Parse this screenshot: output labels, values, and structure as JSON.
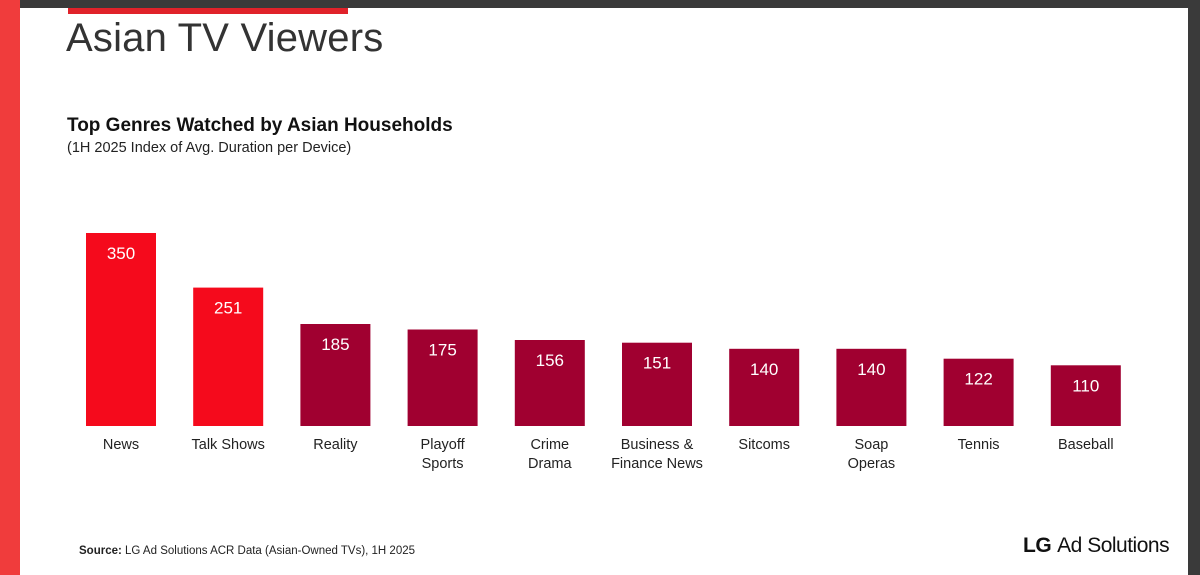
{
  "page": {
    "heading": "Asian TV Viewers",
    "source_label": "Source:",
    "source_text": "LG Ad Solutions ACR Data (Asian-Owned TVs), 1H 2025",
    "logo_brand": "LG",
    "logo_text": "Ad Solutions"
  },
  "colors": {
    "highlight": "#f50a1c",
    "bar": "#a00030",
    "accent": "#e0222a"
  },
  "chart_data": {
    "type": "bar",
    "title": "Top Genres Watched by Asian Households",
    "subtitle": "(1H 2025 Index of Avg. Duration per Device)",
    "categories": [
      [
        "News"
      ],
      [
        "Talk Shows"
      ],
      [
        "Reality"
      ],
      [
        "Playoff",
        "Sports"
      ],
      [
        "Crime",
        "Drama"
      ],
      [
        "Business &",
        "Finance News"
      ],
      [
        "Sitcoms"
      ],
      [
        "Soap",
        "Operas"
      ],
      [
        "Tennis"
      ],
      [
        "Baseball"
      ]
    ],
    "values": [
      350,
      251,
      185,
      175,
      156,
      151,
      140,
      140,
      122,
      110
    ],
    "highlighted": [
      true,
      true,
      false,
      false,
      false,
      false,
      false,
      false,
      false,
      false
    ],
    "data_labels": true,
    "xlabel": "",
    "ylabel": "",
    "grid": false,
    "legend": "none"
  }
}
